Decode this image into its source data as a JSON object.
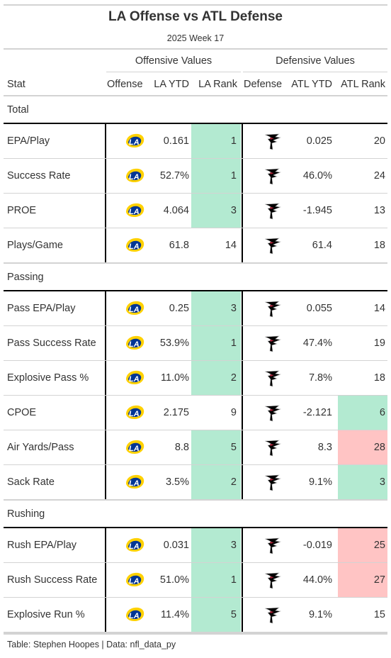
{
  "title": "LA Offense vs ATL Defense",
  "subtitle": "2025 Week 17",
  "groups": {
    "offense": "Offensive Values",
    "defense": "Defensive Values"
  },
  "columns": {
    "stat": "Stat",
    "offense": "Offense",
    "la_ytd": "LA YTD",
    "la_rank": "LA Rank",
    "defense": "Defense",
    "atl_ytd": "ATL YTD",
    "atl_rank": "ATL Rank"
  },
  "colors": {
    "good": "#b3ead1",
    "bad": "#ffc4c4",
    "rams_blue": "#003594",
    "rams_gold": "#FFD100",
    "falcons_black": "#000000",
    "falcons_red": "#A71930"
  },
  "sections": [
    {
      "name": "Total",
      "rows": [
        {
          "stat": "EPA/Play",
          "la_ytd": "0.161",
          "la_rank": "1",
          "la_rank_shade": "good",
          "atl_ytd": "0.025",
          "atl_rank": "20",
          "atl_rank_shade": ""
        },
        {
          "stat": "Success Rate",
          "la_ytd": "52.7%",
          "la_rank": "1",
          "la_rank_shade": "good",
          "atl_ytd": "46.0%",
          "atl_rank": "24",
          "atl_rank_shade": ""
        },
        {
          "stat": "PROE",
          "la_ytd": "4.064",
          "la_rank": "3",
          "la_rank_shade": "good",
          "atl_ytd": "-1.945",
          "atl_rank": "13",
          "atl_rank_shade": ""
        },
        {
          "stat": "Plays/Game",
          "la_ytd": "61.8",
          "la_rank": "14",
          "la_rank_shade": "",
          "atl_ytd": "61.4",
          "atl_rank": "18",
          "atl_rank_shade": ""
        }
      ]
    },
    {
      "name": "Passing",
      "rows": [
        {
          "stat": "Pass EPA/Play",
          "la_ytd": "0.25",
          "la_rank": "3",
          "la_rank_shade": "good",
          "atl_ytd": "0.055",
          "atl_rank": "14",
          "atl_rank_shade": ""
        },
        {
          "stat": "Pass Success Rate",
          "la_ytd": "53.9%",
          "la_rank": "1",
          "la_rank_shade": "good",
          "atl_ytd": "47.4%",
          "atl_rank": "19",
          "atl_rank_shade": ""
        },
        {
          "stat": "Explosive Pass %",
          "la_ytd": "11.0%",
          "la_rank": "2",
          "la_rank_shade": "good",
          "atl_ytd": "7.8%",
          "atl_rank": "18",
          "atl_rank_shade": ""
        },
        {
          "stat": "CPOE",
          "la_ytd": "2.175",
          "la_rank": "9",
          "la_rank_shade": "",
          "atl_ytd": "-2.121",
          "atl_rank": "6",
          "atl_rank_shade": "good"
        },
        {
          "stat": "Air Yards/Pass",
          "la_ytd": "8.8",
          "la_rank": "5",
          "la_rank_shade": "good",
          "atl_ytd": "8.3",
          "atl_rank": "28",
          "atl_rank_shade": "bad"
        },
        {
          "stat": "Sack Rate",
          "la_ytd": "3.5%",
          "la_rank": "2",
          "la_rank_shade": "good",
          "atl_ytd": "9.1%",
          "atl_rank": "3",
          "atl_rank_shade": "good"
        }
      ]
    },
    {
      "name": "Rushing",
      "rows": [
        {
          "stat": "Rush EPA/Play",
          "la_ytd": "0.031",
          "la_rank": "3",
          "la_rank_shade": "good",
          "atl_ytd": "-0.019",
          "atl_rank": "25",
          "atl_rank_shade": "bad"
        },
        {
          "stat": "Rush Success Rate",
          "la_ytd": "51.0%",
          "la_rank": "1",
          "la_rank_shade": "good",
          "atl_ytd": "44.0%",
          "atl_rank": "27",
          "atl_rank_shade": "bad"
        },
        {
          "stat": "Explosive Run %",
          "la_ytd": "11.4%",
          "la_rank": "5",
          "la_rank_shade": "good",
          "atl_ytd": "9.1%",
          "atl_rank": "15",
          "atl_rank_shade": ""
        }
      ]
    }
  ],
  "logos": {
    "offense": "rams-logo-icon",
    "defense": "falcons-logo-icon"
  },
  "footer": "Table: Stephen Hoopes | Data: nfl_data_py"
}
